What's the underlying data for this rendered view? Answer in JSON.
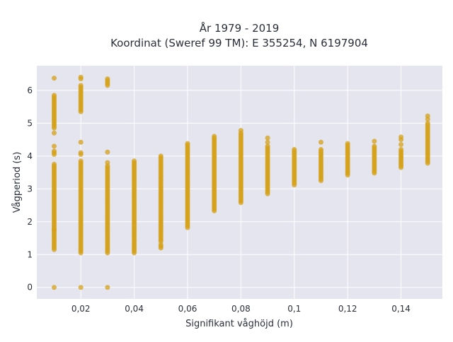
{
  "chart_data": {
    "type": "scatter",
    "title_line1": "År 1979 - 2019",
    "title_line2": "Koordinat (Sweref 99 TM): E 355254, N 6197904",
    "xlabel": "Signifikant våghöjd (m)",
    "ylabel": "Vågperiod (s)",
    "xlim": [
      0.0035,
      0.1555
    ],
    "ylim": [
      -0.35,
      6.75
    ],
    "x_ticks": [
      {
        "value": 0.02,
        "label": "0,02"
      },
      {
        "value": 0.04,
        "label": "0,04"
      },
      {
        "value": 0.06,
        "label": "0,06"
      },
      {
        "value": 0.08,
        "label": "0,08"
      },
      {
        "value": 0.1,
        "label": "0,1"
      },
      {
        "value": 0.12,
        "label": "0,12"
      },
      {
        "value": 0.14,
        "label": "0,14"
      }
    ],
    "y_ticks": [
      {
        "value": 0,
        "label": "0"
      },
      {
        "value": 1,
        "label": "1"
      },
      {
        "value": 2,
        "label": "2"
      },
      {
        "value": 3,
        "label": "3"
      },
      {
        "value": 4,
        "label": "4"
      },
      {
        "value": 5,
        "label": "5"
      },
      {
        "value": 6,
        "label": "6"
      }
    ],
    "grid": true,
    "background_color": "#e5e5f0",
    "marker_color": "#d4a017",
    "columns": [
      {
        "x": 0.01,
        "ranges": [
          [
            1.15,
            1.75
          ],
          [
            1.75,
            3.75
          ],
          [
            4.05,
            4.15
          ],
          [
            4.85,
            5.85
          ]
        ],
        "points": [
          0.0,
          4.3,
          4.7,
          6.37
        ]
      },
      {
        "x": 0.02,
        "ranges": [
          [
            1.05,
            3.85
          ],
          [
            5.35,
            6.15
          ]
        ],
        "points": [
          0.0,
          4.05,
          4.1,
          4.42,
          6.35,
          6.4
        ]
      },
      {
        "x": 0.03,
        "ranges": [
          [
            1.05,
            3.7
          ],
          [
            6.15,
            6.35
          ]
        ],
        "points": [
          0.0,
          3.8,
          4.12
        ]
      },
      {
        "x": 0.04,
        "ranges": [
          [
            1.05,
            3.85
          ]
        ],
        "points": []
      },
      {
        "x": 0.05,
        "ranges": [
          [
            1.2,
            1.3
          ],
          [
            1.4,
            4.0
          ]
        ],
        "points": []
      },
      {
        "x": 0.06,
        "ranges": [
          [
            1.82,
            4.38
          ]
        ],
        "points": []
      },
      {
        "x": 0.07,
        "ranges": [
          [
            2.33,
            4.6
          ]
        ],
        "points": []
      },
      {
        "x": 0.08,
        "ranges": [
          [
            2.58,
            4.7
          ]
        ],
        "points": [
          4.78
        ]
      },
      {
        "x": 0.09,
        "ranges": [
          [
            2.85,
            4.3
          ]
        ],
        "points": [
          4.42,
          4.55
        ]
      },
      {
        "x": 0.1,
        "ranges": [
          [
            3.12,
            4.2
          ]
        ],
        "points": []
      },
      {
        "x": 0.11,
        "ranges": [
          [
            3.25,
            4.2
          ]
        ],
        "points": [
          4.42
        ]
      },
      {
        "x": 0.12,
        "ranges": [
          [
            3.42,
            4.38
          ]
        ],
        "points": []
      },
      {
        "x": 0.13,
        "ranges": [
          [
            3.48,
            4.3
          ]
        ],
        "points": [
          4.45
        ]
      },
      {
        "x": 0.14,
        "ranges": [
          [
            3.65,
            4.2
          ]
        ],
        "points": [
          4.35,
          4.5,
          4.58
        ]
      },
      {
        "x": 0.15,
        "ranges": [
          [
            3.78,
            5.0
          ]
        ],
        "points": [
          5.12,
          5.22
        ]
      }
    ]
  }
}
